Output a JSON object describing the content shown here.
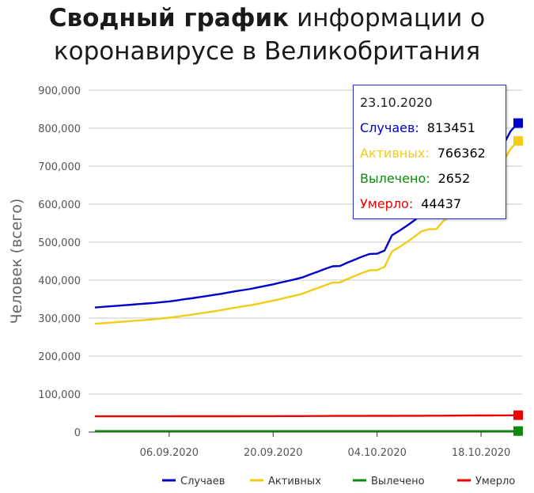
{
  "title": {
    "bold": "Сводный график",
    "rest": " информации о коронавирусе в Великобритания"
  },
  "chart_data": {
    "type": "line",
    "title": "Сводный график информации о коронавирусе в Великобритания",
    "ylabel": "Человек (всего)",
    "xlabel": "",
    "ylim": [
      0,
      900000
    ],
    "yticks": [
      0,
      100000,
      200000,
      300000,
      400000,
      500000,
      600000,
      700000,
      800000,
      900000
    ],
    "ytick_labels": [
      "0",
      "100,000",
      "200,000",
      "300,000",
      "400,000",
      "500,000",
      "600,000",
      "700,000",
      "800,000",
      "900,000"
    ],
    "x_range": [
      "2020-08-27",
      "2020-10-23"
    ],
    "xticks": [
      "2020-09-06",
      "2020-09-20",
      "2020-10-04",
      "2020-10-18"
    ],
    "xtick_labels": [
      "06.09.2020",
      "20.09.2020",
      "04.10.2020",
      "18.10.2020"
    ],
    "grid": true,
    "legend": "bottom-right",
    "x": [
      "2020-08-27",
      "2020-08-28",
      "2020-08-29",
      "2020-08-30",
      "2020-08-31",
      "2020-09-01",
      "2020-09-02",
      "2020-09-03",
      "2020-09-04",
      "2020-09-05",
      "2020-09-06",
      "2020-09-07",
      "2020-09-08",
      "2020-09-09",
      "2020-09-10",
      "2020-09-11",
      "2020-09-12",
      "2020-09-13",
      "2020-09-14",
      "2020-09-15",
      "2020-09-16",
      "2020-09-17",
      "2020-09-18",
      "2020-09-19",
      "2020-09-20",
      "2020-09-21",
      "2020-09-22",
      "2020-09-23",
      "2020-09-24",
      "2020-09-25",
      "2020-09-26",
      "2020-09-27",
      "2020-09-28",
      "2020-09-29",
      "2020-09-30",
      "2020-10-01",
      "2020-10-02",
      "2020-10-03",
      "2020-10-04",
      "2020-10-05",
      "2020-10-06",
      "2020-10-07",
      "2020-10-08",
      "2020-10-09",
      "2020-10-10",
      "2020-10-11",
      "2020-10-12",
      "2020-10-13",
      "2020-10-14",
      "2020-10-15",
      "2020-10-16",
      "2020-10-17",
      "2020-10-18",
      "2020-10-19",
      "2020-10-20",
      "2020-10-21",
      "2020-10-22",
      "2020-10-23"
    ],
    "series": [
      {
        "name": "Случаев",
        "color": "#0000cc",
        "values": [
          328000,
          329500,
          331000,
          332500,
          334000,
          335500,
          337000,
          338500,
          340000,
          342000,
          344000,
          346500,
          349500,
          352000,
          355000,
          358000,
          361000,
          364000,
          367500,
          371000,
          374000,
          377000,
          381000,
          385000,
          389000,
          393500,
          398000,
          402500,
          407500,
          415000,
          422000,
          429500,
          436500,
          437000,
          446000,
          454000,
          462000,
          469000,
          469500,
          478000,
          518000,
          530000,
          543000,
          557000,
          572000,
          577000,
          577500,
          600000,
          612000,
          628000,
          646000,
          672000,
          690000,
          705000,
          724000,
          756000,
          793000,
          813451
        ]
      },
      {
        "name": "Активных",
        "color": "#f2cc17",
        "values": [
          285000,
          286500,
          288000,
          289500,
          291000,
          292500,
          294000,
          295500,
          297000,
          299000,
          301000,
          303500,
          306500,
          309000,
          312000,
          315000,
          318000,
          321000,
          324500,
          328000,
          331000,
          334000,
          338000,
          342000,
          346000,
          350500,
          355000,
          359500,
          364500,
          372000,
          379000,
          386500,
          393500,
          394000,
          403000,
          411000,
          419000,
          426000,
          426500,
          435000,
          475000,
          487000,
          500000,
          514000,
          529000,
          534000,
          534500,
          557000,
          569000,
          585000,
          603000,
          629000,
          647000,
          662000,
          681000,
          713000,
          746000,
          766362
        ]
      },
      {
        "name": "Вылечено",
        "color": "#0d8a0d",
        "values": [
          2652,
          2652,
          2652,
          2652,
          2652,
          2652,
          2652,
          2652,
          2652,
          2652,
          2652,
          2652,
          2652,
          2652,
          2652,
          2652,
          2652,
          2652,
          2652,
          2652,
          2652,
          2652,
          2652,
          2652,
          2652,
          2652,
          2652,
          2652,
          2652,
          2652,
          2652,
          2652,
          2652,
          2652,
          2652,
          2652,
          2652,
          2652,
          2652,
          2652,
          2652,
          2652,
          2652,
          2652,
          2652,
          2652,
          2652,
          2652,
          2652,
          2652,
          2652,
          2652,
          2652,
          2652,
          2652,
          2652,
          2652,
          2652
        ]
      },
      {
        "name": "Умерло",
        "color": "#ee0000",
        "values": [
          41500,
          41500,
          41500,
          41500,
          41500,
          41500,
          41500,
          41550,
          41550,
          41550,
          41550,
          41600,
          41600,
          41600,
          41650,
          41650,
          41700,
          41700,
          41700,
          41750,
          41800,
          41800,
          41850,
          41900,
          41950,
          42000,
          42050,
          42100,
          42150,
          42250,
          42300,
          42350,
          42400,
          42450,
          42500,
          42550,
          42600,
          42650,
          42700,
          42750,
          42800,
          42850,
          42900,
          42950,
          43000,
          43050,
          43100,
          43200,
          43300,
          43400,
          43500,
          43600,
          43700,
          43800,
          43900,
          44050,
          44250,
          44437
        ]
      }
    ],
    "tooltip": {
      "date": "23.10.2020",
      "rows": [
        {
          "label": "Случаев:",
          "value": "813451",
          "color": "#0000cc"
        },
        {
          "label": "Активных:",
          "value": "766362",
          "color": "#f2cc17"
        },
        {
          "label": "Вылечено:",
          "value": "2652",
          "color": "#0d8a0d"
        },
        {
          "label": "Умерло:",
          "value": "44437",
          "color": "#ee0000"
        }
      ]
    }
  }
}
